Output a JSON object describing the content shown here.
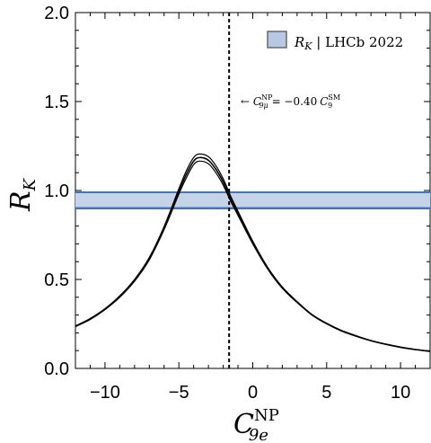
{
  "chart_data": {
    "type": "line",
    "title": "",
    "xlabel": "C_{9e}^{NP}",
    "ylabel": "R_K",
    "xlabel_main": "C",
    "xlabel_sup": "NP",
    "xlabel_sub": "9e",
    "ylabel_main": "R",
    "ylabel_sub": "K",
    "xlim": [
      -12,
      12
    ],
    "ylim": [
      0,
      2
    ],
    "x_ticks": [
      -10,
      -5,
      0,
      5,
      10
    ],
    "x_tick_labels": [
      "−10",
      "−5",
      "0",
      "5",
      "10"
    ],
    "y_ticks": [
      0.0,
      0.5,
      1.0,
      1.5,
      2.0
    ],
    "y_tick_labels": [
      "0.0",
      "0.5",
      "1.0",
      "1.5",
      "2.0"
    ],
    "grid": false,
    "legend_position": "top-right",
    "legend_label": "R_K | LHCb 2022",
    "legend_label_main": "R",
    "legend_label_sub": "K",
    "legend_label_rest": " | LHCb 2022",
    "band": {
      "name": "R_K | LHCb 2022",
      "lower": 0.9,
      "upper": 0.99,
      "fill": "#c5d3e8",
      "edge": "#4a74ae"
    },
    "vline": {
      "x": -1.6,
      "style": "dashed"
    },
    "annotation": "← C_{9μ}^{NP} = −0.40 C_9^{SM}",
    "annotation_parts": {
      "arrow": "← ",
      "c": "C",
      "sub": "9μ",
      "sup": "NP",
      "eq": " = −0.40",
      "c2": "C",
      "sub2": "9",
      "sup2": "SM"
    },
    "series": [
      {
        "x": [
          -12,
          -11,
          -10,
          -9,
          -8,
          -7,
          -6,
          -5,
          -4.5,
          -4,
          -3.6,
          -3,
          -2.5,
          -2,
          -1.5,
          -1,
          0,
          1,
          2,
          3,
          4,
          5,
          6,
          7,
          8,
          9,
          10,
          11,
          12
        ],
        "values": [
          0.235,
          0.275,
          0.33,
          0.4,
          0.49,
          0.61,
          0.78,
          0.98,
          1.07,
          1.145,
          1.165,
          1.15,
          1.1,
          1.03,
          0.94,
          0.86,
          0.7,
          0.56,
          0.45,
          0.37,
          0.3,
          0.25,
          0.21,
          0.18,
          0.155,
          0.135,
          0.118,
          0.105,
          0.095
        ]
      },
      {
        "x": [
          -12,
          -11,
          -10,
          -9,
          -8,
          -7,
          -6,
          -5,
          -4.5,
          -4,
          -3.6,
          -3,
          -2.5,
          -2,
          -1.5,
          -1,
          0,
          1,
          2,
          3,
          4,
          5,
          6,
          7,
          8,
          9,
          10,
          11,
          12
        ],
        "values": [
          0.237,
          0.278,
          0.333,
          0.404,
          0.495,
          0.617,
          0.789,
          0.995,
          1.09,
          1.165,
          1.185,
          1.17,
          1.12,
          1.048,
          0.955,
          0.872,
          0.708,
          0.565,
          0.454,
          0.373,
          0.302,
          0.252,
          0.212,
          0.182,
          0.156,
          0.136,
          0.119,
          0.106,
          0.096
        ]
      },
      {
        "x": [
          -12,
          -11,
          -10,
          -9,
          -8,
          -7,
          -6,
          -5,
          -4.5,
          -4,
          -3.6,
          -3,
          -2.5,
          -2,
          -1.5,
          -1,
          0,
          1,
          2,
          3,
          4,
          5,
          6,
          7,
          8,
          9,
          10,
          11,
          12
        ],
        "values": [
          0.239,
          0.281,
          0.336,
          0.408,
          0.5,
          0.624,
          0.798,
          1.01,
          1.11,
          1.185,
          1.205,
          1.19,
          1.14,
          1.066,
          0.97,
          0.884,
          0.716,
          0.57,
          0.458,
          0.376,
          0.304,
          0.254,
          0.214,
          0.184,
          0.157,
          0.137,
          0.12,
          0.107,
          0.097
        ]
      }
    ]
  }
}
